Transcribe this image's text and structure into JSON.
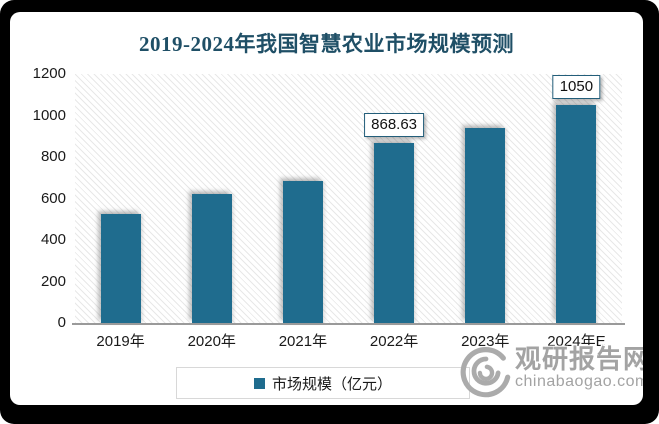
{
  "chart_data": {
    "type": "bar",
    "title": "2019-2024年我国智慧农业市场规模预测",
    "categories": [
      "2019年",
      "2020年",
      "2021年",
      "2022年",
      "2023年",
      "2024年E"
    ],
    "series": [
      {
        "name": "市场规模（亿元）",
        "values": [
          525,
          620,
          685,
          868.63,
          940,
          1050
        ]
      }
    ],
    "point_labels": [
      "",
      "",
      "",
      "868.63",
      "",
      "1050"
    ],
    "ylim": [
      0,
      1200
    ],
    "yticks": [
      0,
      200,
      400,
      600,
      800,
      1000,
      1200
    ],
    "xlabel": "",
    "ylabel": "",
    "grid": false,
    "legend_position": "bottom",
    "bar_color": "#1F6C8E",
    "title_color": "#1F4F66"
  },
  "legend": {
    "label": "市场规模（亿元）",
    "marker_color": "#1F6C8E"
  },
  "watermark": {
    "logo": "swirl-logo",
    "name": "观研报告网",
    "url": "chinabaogao.com"
  }
}
